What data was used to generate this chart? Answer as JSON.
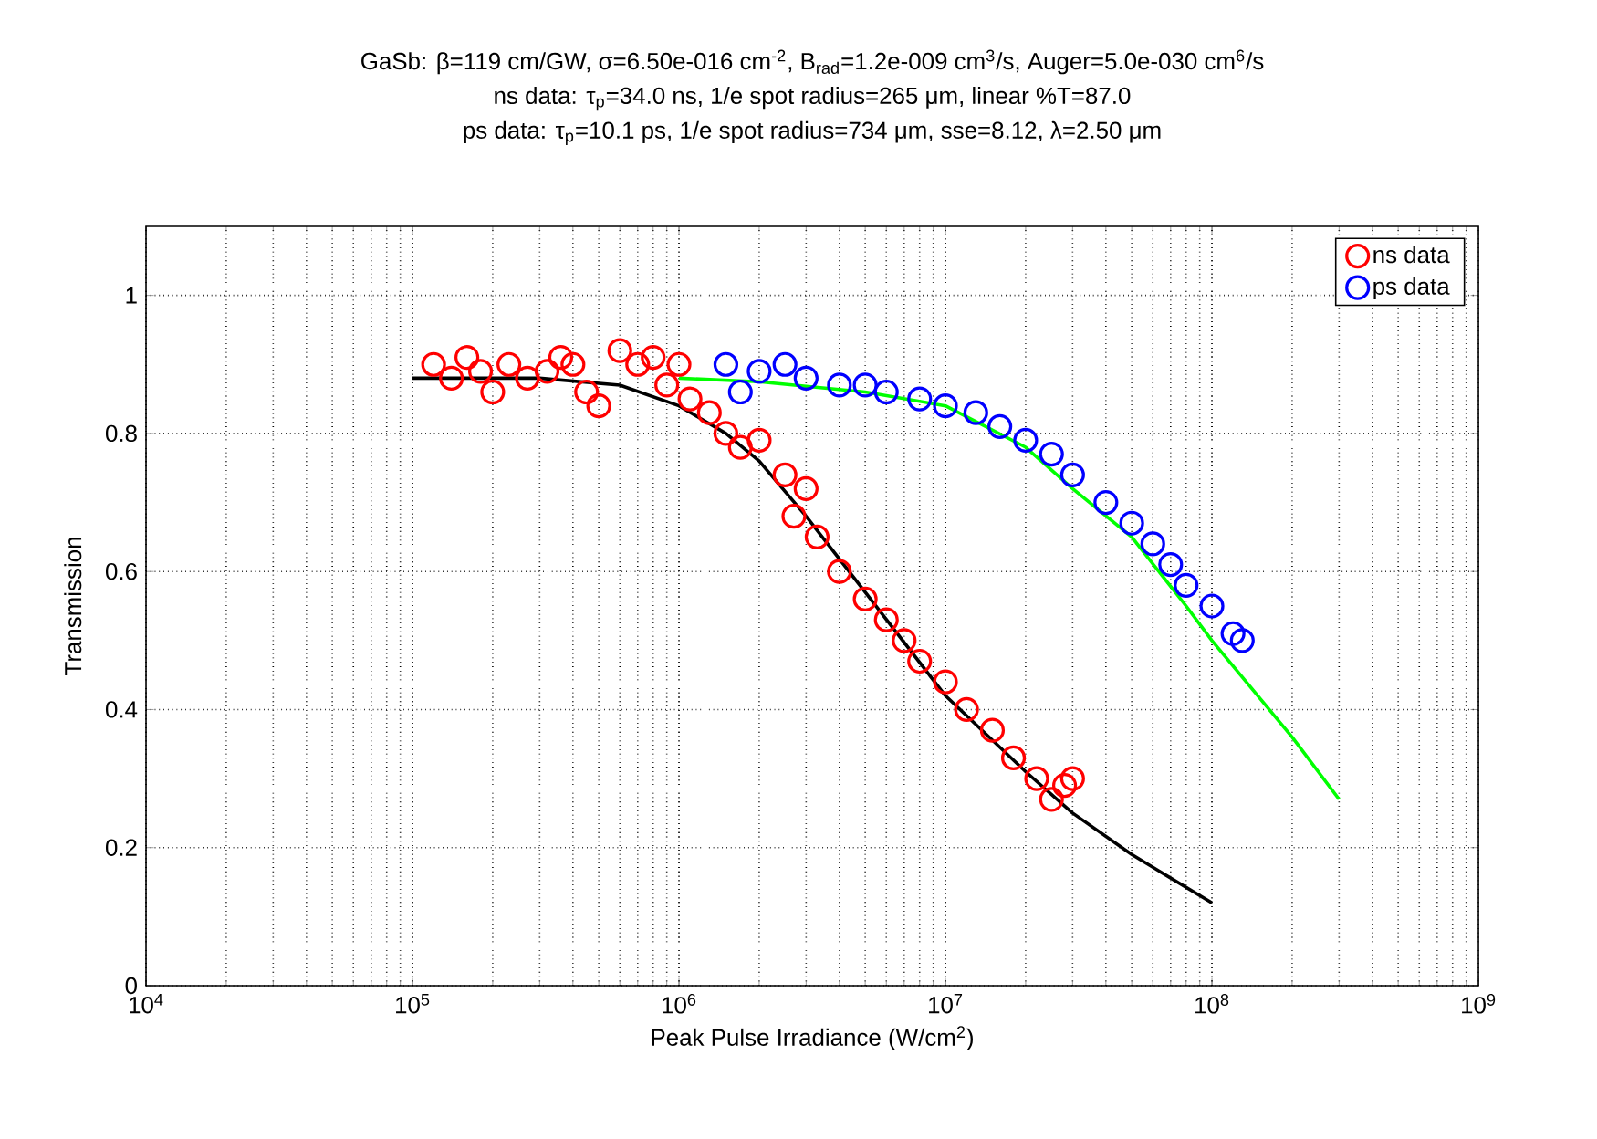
{
  "chart_data": {
    "type": "scatter",
    "title": "GaSb: β=119 cm/GW, σ=6.50e-016 cm$^{-2}$, B$_{rad}$=1.2e-009 cm$^{3}$/s, Auger=5.0e-030 cm$^{6}$/s",
    "subtitle": [
      "ns data: τ$_{p}$=34.0 ns, 1/e spot radius=265 μm, linear %T=87.0",
      "ps data: τ$_{p}$=10.1 ps, 1/e spot radius=734 μm, sse=8.12, λ=2.50 μm"
    ],
    "xlabel": "Peak Pulse Irradiance (W/cm$^{2}$)",
    "ylabel": "Transmission",
    "log": "x",
    "grid": true,
    "legend": "top right",
    "xlim": [
      10000,
      1000000000
    ],
    "xticks": [
      {
        "value": 10000,
        "label": "10$^{4}$"
      },
      {
        "value": 100000,
        "label": "10$^{5}$"
      },
      {
        "value": 1000000,
        "label": "10$^{6}$"
      },
      {
        "value": 10000000,
        "label": "10$^{7}$"
      },
      {
        "value": 100000000,
        "label": "10$^{8}$"
      },
      {
        "value": 1000000000,
        "label": "10$^{9}$"
      }
    ],
    "ylim": [
      0,
      1.1
    ],
    "yticks": [
      0,
      0.2,
      0.4,
      0.6,
      0.8,
      1
    ],
    "series": [
      {
        "name": "ns data",
        "marker": "circle",
        "color": "#ff0000",
        "x": [
          120000,
          140000,
          160000,
          180000,
          200000,
          230000,
          270000,
          320000,
          360000,
          400000,
          450000,
          500000,
          600000,
          700000,
          800000,
          900000,
          1000000,
          1100000,
          1300000,
          1500000,
          1700000,
          2000000,
          2500000,
          2700000,
          3000000,
          3300000,
          4000000,
          5000000,
          6000000,
          7000000,
          8000000,
          10000000,
          12000000,
          15000000,
          18000000,
          22000000,
          25000000,
          28000000,
          30000000
        ],
        "values": [
          0.9,
          0.88,
          0.91,
          0.89,
          0.86,
          0.9,
          0.88,
          0.89,
          0.91,
          0.9,
          0.86,
          0.84,
          0.92,
          0.9,
          0.91,
          0.87,
          0.9,
          0.85,
          0.83,
          0.8,
          0.78,
          0.79,
          0.74,
          0.68,
          0.72,
          0.65,
          0.6,
          0.56,
          0.53,
          0.5,
          0.47,
          0.44,
          0.4,
          0.37,
          0.33,
          0.3,
          0.27,
          0.29,
          0.3
        ]
      },
      {
        "name": "ps data",
        "marker": "circle",
        "color": "#0000ff",
        "x": [
          1500000,
          1700000,
          2000000,
          2500000,
          3000000,
          4000000,
          5000000,
          6000000,
          8000000,
          10000000,
          13000000,
          16000000,
          20000000,
          25000000,
          30000000,
          40000000,
          50000000,
          60000000,
          70000000,
          80000000,
          100000000,
          120000000,
          130000000
        ],
        "values": [
          0.9,
          0.86,
          0.89,
          0.9,
          0.88,
          0.87,
          0.87,
          0.86,
          0.85,
          0.84,
          0.83,
          0.81,
          0.79,
          0.77,
          0.74,
          0.7,
          0.67,
          0.64,
          0.61,
          0.58,
          0.55,
          0.51,
          0.5
        ]
      },
      {
        "type": "line",
        "marker": "none",
        "color": "#000000",
        "x": [
          100000,
          300000,
          600000,
          1000000,
          1500000,
          2000000,
          3000000,
          5000000,
          10000000,
          20000000,
          30000000,
          50000000,
          100000000
        ],
        "values": [
          0.88,
          0.88,
          0.87,
          0.84,
          0.8,
          0.76,
          0.68,
          0.57,
          0.42,
          0.31,
          0.25,
          0.19,
          0.12
        ]
      },
      {
        "type": "line",
        "marker": "none",
        "color": "#00ff00",
        "x": [
          1000000,
          2000000,
          5000000,
          10000000,
          20000000,
          30000000,
          50000000,
          80000000,
          100000000,
          200000000,
          300000000
        ],
        "values": [
          0.88,
          0.875,
          0.86,
          0.84,
          0.78,
          0.72,
          0.65,
          0.55,
          0.5,
          0.36,
          0.27
        ]
      }
    ]
  }
}
